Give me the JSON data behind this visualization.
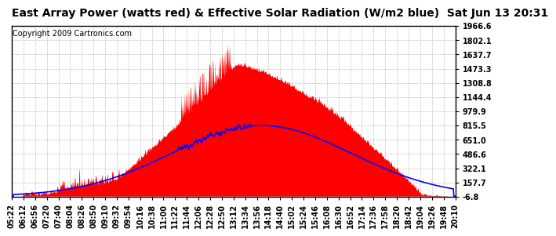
{
  "title": "East Array Power (watts red) & Effective Solar Radiation (W/m2 blue)  Sat Jun 13 20:31",
  "copyright": "Copyright 2009 Cartronics.com",
  "yticks": [
    1966.6,
    1802.1,
    1637.7,
    1473.3,
    1308.8,
    1144.4,
    979.9,
    815.5,
    651.0,
    486.6,
    322.1,
    157.7,
    -6.8
  ],
  "ymin": -6.8,
  "ymax": 1966.6,
  "xtick_labels": [
    "05:22",
    "06:12",
    "06:56",
    "07:20",
    "07:40",
    "08:04",
    "08:26",
    "08:50",
    "09:10",
    "09:32",
    "09:54",
    "10:16",
    "10:38",
    "11:00",
    "11:22",
    "11:44",
    "12:06",
    "12:28",
    "12:50",
    "13:12",
    "13:34",
    "13:56",
    "14:18",
    "14:40",
    "15:02",
    "15:24",
    "15:46",
    "16:08",
    "16:30",
    "16:52",
    "17:14",
    "17:36",
    "17:58",
    "18:20",
    "18:42",
    "19:04",
    "19:26",
    "19:48",
    "20:10"
  ],
  "bg_color": "#ffffff",
  "plot_bg_color": "#ffffff",
  "grid_color": "#c0c0c0",
  "red_color": "#ff0000",
  "blue_color": "#0000ff",
  "title_fontsize": 10,
  "copyright_fontsize": 7,
  "tick_fontsize": 7,
  "radiation_peak": 815.5,
  "radiation_peak_time": 500,
  "radiation_sigma": 180,
  "power_peak": 1900,
  "power_peak_time": 395
}
